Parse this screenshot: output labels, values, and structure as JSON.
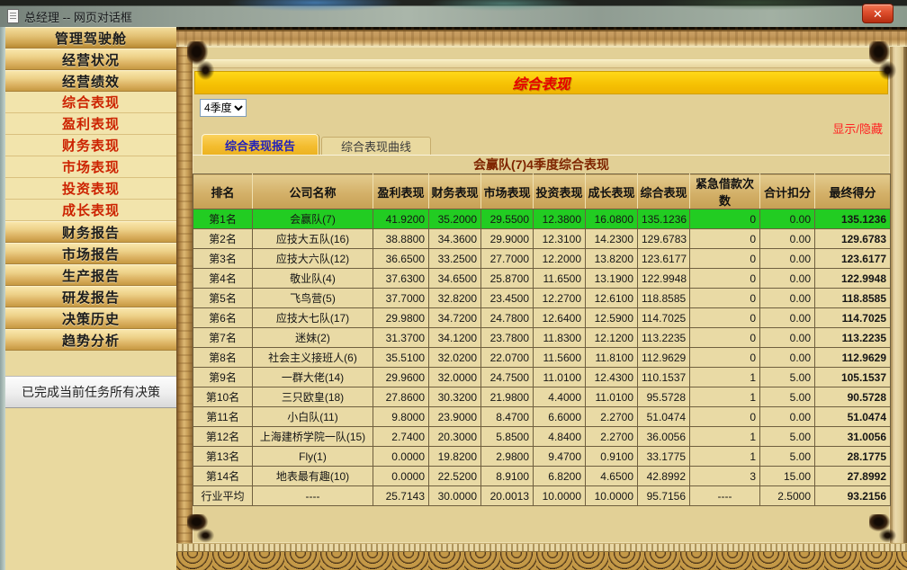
{
  "window": {
    "title": "总经理 -- 网页对话框",
    "close_icon": "✕"
  },
  "sidebar": {
    "items": [
      {
        "label": "管理驾驶舱",
        "style": "header"
      },
      {
        "label": "经营状况",
        "style": "dark"
      },
      {
        "label": "经营绩效",
        "style": "dark"
      },
      {
        "label": "综合表现",
        "style": "red"
      },
      {
        "label": "盈利表现",
        "style": "red"
      },
      {
        "label": "财务表现",
        "style": "red"
      },
      {
        "label": "市场表现",
        "style": "red"
      },
      {
        "label": "投资表现",
        "style": "red"
      },
      {
        "label": "成长表现",
        "style": "red"
      },
      {
        "label": "财务报告",
        "style": "dark"
      },
      {
        "label": "市场报告",
        "style": "dark"
      },
      {
        "label": "生产报告",
        "style": "dark"
      },
      {
        "label": "研发报告",
        "style": "dark"
      },
      {
        "label": "决策历史",
        "style": "dark"
      },
      {
        "label": "趋势分析",
        "style": "dark"
      }
    ],
    "status_button": "已完成当前任务所有决策"
  },
  "main": {
    "banner_title": "综合表现",
    "quarter_select": {
      "value": "4季度"
    },
    "toggle_link": "显示/隐藏",
    "tabs": [
      {
        "label": "综合表现报告",
        "active": true
      },
      {
        "label": "综合表现曲线",
        "active": false
      }
    ],
    "table": {
      "title": "会赢队(7)4季度综合表现",
      "columns": [
        "排名",
        "公司名称",
        "盈利表现",
        "财务表现",
        "市场表现",
        "投资表现",
        "成长表现",
        "综合表现",
        "紧急借款次数",
        "合计扣分",
        "最终得分"
      ],
      "highlight_row_index": 0,
      "rows": [
        [
          "第1名",
          "会赢队(7)",
          "41.9200",
          "35.2000",
          "29.5500",
          "12.3800",
          "16.0800",
          "135.1236",
          "0",
          "0.00",
          "135.1236"
        ],
        [
          "第2名",
          "应技大五队(16)",
          "38.8800",
          "34.3600",
          "29.9000",
          "12.3100",
          "14.2300",
          "129.6783",
          "0",
          "0.00",
          "129.6783"
        ],
        [
          "第3名",
          "应技大六队(12)",
          "36.6500",
          "33.2500",
          "27.7000",
          "12.2000",
          "13.8200",
          "123.6177",
          "0",
          "0.00",
          "123.6177"
        ],
        [
          "第4名",
          "敬业队(4)",
          "37.6300",
          "34.6500",
          "25.8700",
          "11.6500",
          "13.1900",
          "122.9948",
          "0",
          "0.00",
          "122.9948"
        ],
        [
          "第5名",
          "飞鸟营(5)",
          "37.7000",
          "32.8200",
          "23.4500",
          "12.2700",
          "12.6100",
          "118.8585",
          "0",
          "0.00",
          "118.8585"
        ],
        [
          "第6名",
          "应技大七队(17)",
          "29.9800",
          "34.7200",
          "24.7800",
          "12.6400",
          "12.5900",
          "114.7025",
          "0",
          "0.00",
          "114.7025"
        ],
        [
          "第7名",
          "迷妹(2)",
          "31.3700",
          "34.1200",
          "23.7800",
          "11.8300",
          "12.1200",
          "113.2235",
          "0",
          "0.00",
          "113.2235"
        ],
        [
          "第8名",
          "社会主义接班人(6)",
          "35.5100",
          "32.0200",
          "22.0700",
          "11.5600",
          "11.8100",
          "112.9629",
          "0",
          "0.00",
          "112.9629"
        ],
        [
          "第9名",
          "一群大佬(14)",
          "29.9600",
          "32.0000",
          "24.7500",
          "11.0100",
          "12.4300",
          "110.1537",
          "1",
          "5.00",
          "105.1537"
        ],
        [
          "第10名",
          "三只欧皇(18)",
          "27.8600",
          "30.3200",
          "21.9800",
          "4.4000",
          "11.0100",
          "95.5728",
          "1",
          "5.00",
          "90.5728"
        ],
        [
          "第11名",
          "小白队(11)",
          "9.8000",
          "23.9000",
          "8.4700",
          "6.6000",
          "2.2700",
          "51.0474",
          "0",
          "0.00",
          "51.0474"
        ],
        [
          "第12名",
          "上海建桥学院一队(15)",
          "2.7400",
          "20.3000",
          "5.8500",
          "4.8400",
          "2.2700",
          "36.0056",
          "1",
          "5.00",
          "31.0056"
        ],
        [
          "第13名",
          "Fly(1)",
          "0.0000",
          "19.8200",
          "2.9800",
          "9.4700",
          "0.9100",
          "33.1775",
          "1",
          "5.00",
          "28.1775"
        ],
        [
          "第14名",
          "地表最有趣(10)",
          "0.0000",
          "22.5200",
          "8.9100",
          "6.8200",
          "4.6500",
          "42.8992",
          "3",
          "15.00",
          "27.8992"
        ],
        [
          "行业平均",
          "----",
          "25.7143",
          "30.0000",
          "20.0013",
          "10.0000",
          "10.0000",
          "95.7156",
          "----",
          "2.5000",
          "93.2156"
        ]
      ]
    }
  },
  "colors": {
    "banner_bg": "#f6c204",
    "highlight_green": "#22cc22",
    "sidebar_red_text": "#cc2200",
    "tab_active_text": "#2121bb",
    "toggle_red": "#ff2222",
    "close_button_red": "#dd4d2c"
  }
}
